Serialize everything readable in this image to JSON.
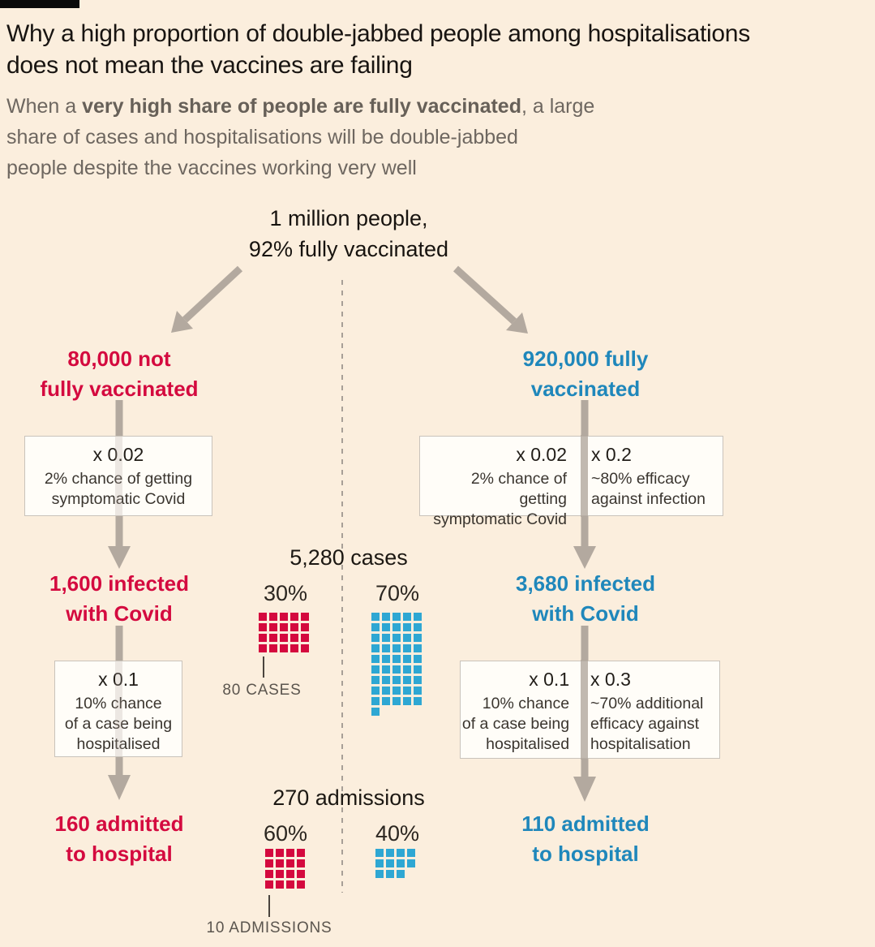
{
  "page": {
    "background": "#fbeedd",
    "brand_bar_color": "#0a0a0a"
  },
  "colors": {
    "not_vaccinated_red": "#d40a3f",
    "vaccinated_blue": "#1f87bb",
    "waffle_blue": "#2ea7d3",
    "arrow_gray": "#b3a99f",
    "dashed_divider": "#a79f97",
    "box_background": "#fffdf8",
    "box_border": "#c9c3bb"
  },
  "header": {
    "title_line1": "Why a high proportion of double-jabbed people among hospitalisations",
    "title_line2": "does not mean the vaccines are failing",
    "subtitle_line1_pre": "When a ",
    "subtitle_line1_bold": "very high share of people are fully vaccinated",
    "subtitle_line1_rest": ", a large",
    "subtitle_line2": "share of cases and hospitalisations will be double-jabbed",
    "subtitle_line3": "people despite the vaccines working very well"
  },
  "root_node": {
    "line1": "1 million people,",
    "line2": "92% fully vaccinated"
  },
  "left_branch": {
    "node1": {
      "line1": "80,000 not",
      "line2": "fully vaccinated"
    },
    "box1": {
      "factor": "x 0.02",
      "desc_line1": "2% chance of getting",
      "desc_line2": "symptomatic Covid"
    },
    "node2": {
      "line1": "1,600 infected",
      "line2": "with Covid"
    },
    "box2": {
      "factor": "x 0.1",
      "desc_line1": "10% chance",
      "desc_line2": "of a case being",
      "desc_line3": "hospitalised"
    },
    "node3": {
      "line1": "160 admitted",
      "line2": "to hospital"
    }
  },
  "right_branch": {
    "node1": {
      "line1": "920,000 fully",
      "line2": "vaccinated"
    },
    "box1": {
      "left": {
        "factor": "x 0.02",
        "line1": "2% chance of getting",
        "line2": "symptomatic Covid"
      },
      "right": {
        "factor": "x 0.2",
        "line1": "~80% efficacy",
        "line2": "against infection"
      }
    },
    "node2": {
      "line1": "3,680 infected",
      "line2": "with Covid"
    },
    "box2": {
      "left": {
        "factor": "x 0.1",
        "line1": "10% chance",
        "line2": "of a case being",
        "line3": "hospitalised"
      },
      "right": {
        "factor": "x 0.3",
        "line1": "~70% additional",
        "line2": "efficacy against",
        "line3": "hospitalisation"
      }
    },
    "node3": {
      "line1": "110 admitted",
      "line2": "to hospital"
    }
  },
  "chart_data": [
    {
      "type": "waffle",
      "title": "5,280 cases",
      "total": 5280,
      "unit_label": "80 CASES",
      "unit_value": 80,
      "legend_position": "below-left",
      "series": [
        {
          "name": "not fully vaccinated",
          "share_label": "30%",
          "share_pct": 30,
          "value": 1600,
          "squares": 20,
          "columns": 5,
          "color": "#d4093e"
        },
        {
          "name": "fully vaccinated",
          "share_label": "70%",
          "share_pct": 70,
          "value": 3680,
          "squares": 46,
          "columns": 5,
          "color": "#2ea7d3"
        }
      ]
    },
    {
      "type": "waffle",
      "title": "270 admissions",
      "total": 270,
      "unit_label": "10 ADMISSIONS",
      "unit_value": 10,
      "legend_position": "below-left",
      "series": [
        {
          "name": "not fully vaccinated",
          "share_label": "60%",
          "share_pct": 60,
          "value": 160,
          "squares": 16,
          "columns": 4,
          "color": "#d4093e"
        },
        {
          "name": "fully vaccinated",
          "share_label": "40%",
          "share_pct": 40,
          "value": 110,
          "squares": 11,
          "columns": 4,
          "color": "#2ea7d3"
        }
      ]
    }
  ]
}
